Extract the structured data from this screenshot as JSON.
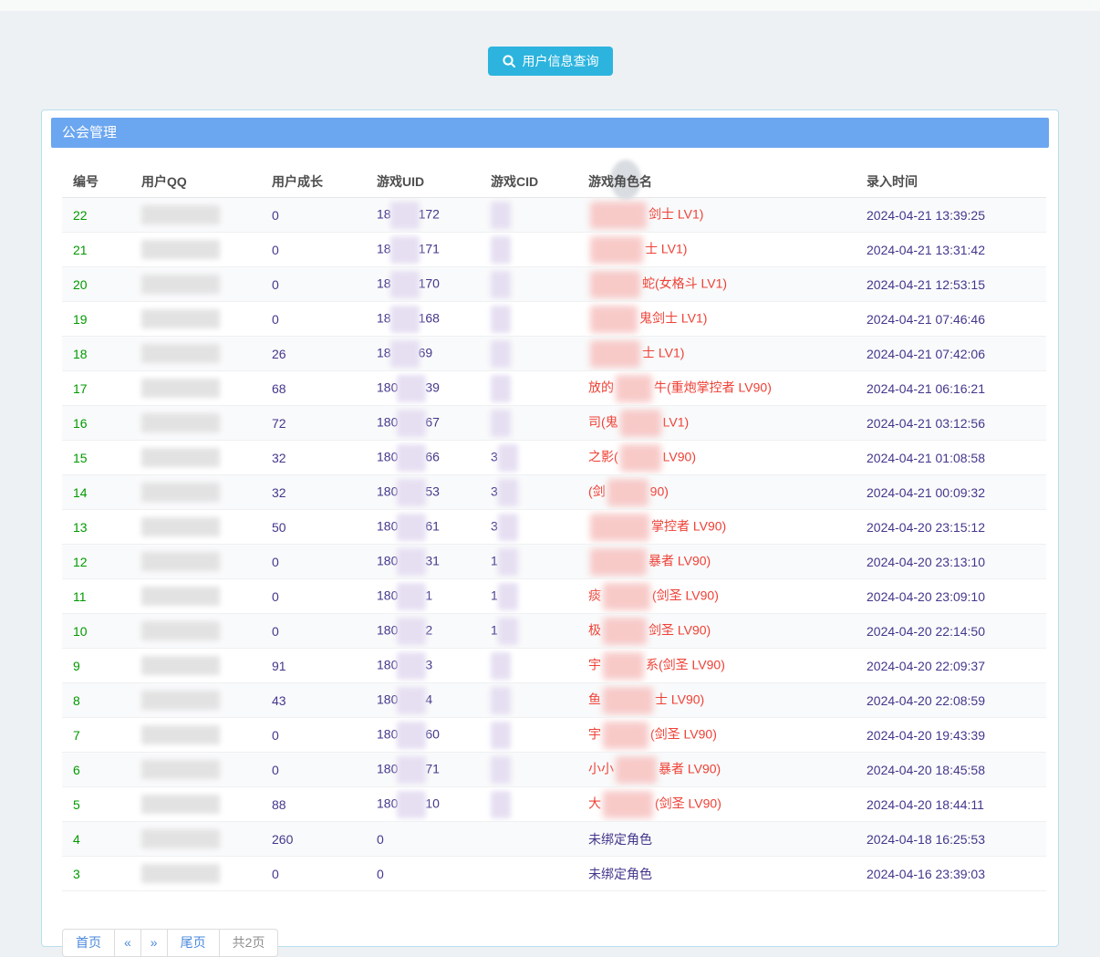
{
  "header": {
    "query_button_label": "用户信息查询",
    "query_button_color": "#2cb4df"
  },
  "panel": {
    "title": "公会管理",
    "title_bar_color": "#6ba6f0"
  },
  "colors": {
    "row_number_green": "#009900",
    "value_purple": "#43378c",
    "character_red": "#ee4035",
    "pager_link_blue": "#4a89dc",
    "panel_border": "#b9dfee"
  },
  "table": {
    "columns": [
      "编号",
      "用户QQ",
      "用户成长",
      "游戏UID",
      "游戏CID",
      "游戏角色名",
      "录入时间"
    ],
    "rows": [
      {
        "num": "22",
        "growth": "0",
        "uid": {
          "pre": "18",
          "suf": "172",
          "blur": true
        },
        "cid": {
          "pre": "",
          "blur": true
        },
        "name": {
          "pre": "",
          "suf": "剑士 LV1)",
          "red": true,
          "blur_w": 62
        },
        "time": "2024-04-21 13:39:25"
      },
      {
        "num": "21",
        "growth": "0",
        "uid": {
          "pre": "18",
          "suf": "171",
          "blur": true
        },
        "cid": {
          "pre": "",
          "blur": true
        },
        "name": {
          "pre": "",
          "suf": "士 LV1)",
          "red": true,
          "blur_w": 58
        },
        "time": "2024-04-21 13:31:42"
      },
      {
        "num": "20",
        "growth": "0",
        "uid": {
          "pre": "18",
          "suf": "170",
          "blur": true
        },
        "cid": {
          "pre": "",
          "blur": true
        },
        "name": {
          "pre": "",
          "suf": "蛇(女格斗 LV1)",
          "red": true,
          "blur_w": 55
        },
        "time": "2024-04-21 12:53:15"
      },
      {
        "num": "19",
        "growth": "0",
        "uid": {
          "pre": "18",
          "suf": "168",
          "blur": true
        },
        "cid": {
          "pre": "",
          "blur": true
        },
        "name": {
          "pre": "",
          "suf": "鬼剑士 LV1)",
          "red": true,
          "blur_w": 52
        },
        "time": "2024-04-21 07:46:46"
      },
      {
        "num": "18",
        "growth": "26",
        "uid": {
          "pre": "18",
          "suf": "69",
          "blur": true
        },
        "cid": {
          "pre": "",
          "blur": true
        },
        "name": {
          "pre": "",
          "suf": "士 LV1)",
          "red": true,
          "blur_w": 55
        },
        "time": "2024-04-21 07:42:06"
      },
      {
        "num": "17",
        "growth": "68",
        "uid": {
          "pre": "180",
          "suf": "39",
          "blur": true
        },
        "cid": {
          "pre": "",
          "blur": true
        },
        "name": {
          "pre": "放的",
          "suf": "牛(重炮掌控者 LV90)",
          "red": true,
          "blur_w": 40
        },
        "time": "2024-04-21 06:16:21"
      },
      {
        "num": "16",
        "growth": "72",
        "uid": {
          "pre": "180",
          "suf": "67",
          "blur": true
        },
        "cid": {
          "pre": "",
          "blur": true
        },
        "name": {
          "pre": "司(鬼",
          "suf": "LV1)",
          "red": true,
          "blur_w": 45
        },
        "time": "2024-04-21 03:12:56"
      },
      {
        "num": "15",
        "growth": "32",
        "uid": {
          "pre": "180",
          "suf": "66",
          "blur": true
        },
        "cid": {
          "pre": "3",
          "blur": true
        },
        "name": {
          "pre": "之影(",
          "suf": "LV90)",
          "red": true,
          "blur_w": 45
        },
        "time": "2024-04-21 01:08:58"
      },
      {
        "num": "14",
        "growth": "32",
        "uid": {
          "pre": "180",
          "suf": "53",
          "blur": true
        },
        "cid": {
          "pre": "3",
          "blur": true
        },
        "name": {
          "pre": "(剑",
          "suf": "90)",
          "red": true,
          "blur_w": 45
        },
        "time": "2024-04-21 00:09:32"
      },
      {
        "num": "13",
        "growth": "50",
        "uid": {
          "pre": "180",
          "suf": "61",
          "blur": true
        },
        "cid": {
          "pre": "3",
          "blur": true
        },
        "name": {
          "pre": "",
          "suf": "掌控者 LV90)",
          "red": true,
          "blur_w": 65
        },
        "time": "2024-04-20 23:15:12"
      },
      {
        "num": "12",
        "growth": "0",
        "uid": {
          "pre": "180",
          "suf": "31",
          "blur": true
        },
        "cid": {
          "pre": "1",
          "blur": true
        },
        "name": {
          "pre": "",
          "suf": "暴者 LV90)",
          "red": true,
          "blur_w": 62
        },
        "time": "2024-04-20 23:13:10"
      },
      {
        "num": "11",
        "growth": "0",
        "uid": {
          "pre": "180",
          "suf": "1",
          "blur": true
        },
        "cid": {
          "pre": "1",
          "blur": true
        },
        "name": {
          "pre": "痰",
          "suf": "(剑圣 LV90)",
          "red": true,
          "blur_w": 52
        },
        "time": "2024-04-20 23:09:10"
      },
      {
        "num": "10",
        "growth": "0",
        "uid": {
          "pre": "180",
          "suf": "2",
          "blur": true
        },
        "cid": {
          "pre": "1",
          "blur": true
        },
        "name": {
          "pre": "极",
          "suf": "剑圣 LV90)",
          "red": true,
          "blur_w": 48
        },
        "time": "2024-04-20 22:14:50"
      },
      {
        "num": "9",
        "growth": "91",
        "uid": {
          "pre": "180",
          "suf": "3",
          "blur": true
        },
        "cid": {
          "pre": "",
          "blur": true
        },
        "name": {
          "pre": "宇",
          "suf": "系(剑圣 LV90)",
          "red": true,
          "blur_w": 45
        },
        "time": "2024-04-20 22:09:37"
      },
      {
        "num": "8",
        "growth": "43",
        "uid": {
          "pre": "180",
          "suf": "4",
          "blur": true
        },
        "cid": {
          "pre": "",
          "blur": true
        },
        "name": {
          "pre": "鱼",
          "suf": "士 LV90)",
          "red": true,
          "blur_w": 55
        },
        "time": "2024-04-20 22:08:59"
      },
      {
        "num": "7",
        "growth": "0",
        "uid": {
          "pre": "180",
          "suf": "60",
          "blur": true
        },
        "cid": {
          "pre": "",
          "blur": true
        },
        "name": {
          "pre": "宇",
          "suf": "(剑圣 LV90)",
          "red": true,
          "blur_w": 50
        },
        "time": "2024-04-20 19:43:39"
      },
      {
        "num": "6",
        "growth": "0",
        "uid": {
          "pre": "180",
          "suf": "71",
          "blur": true
        },
        "cid": {
          "pre": "",
          "blur": true
        },
        "name": {
          "pre": "小小",
          "suf": "暴者 LV90)",
          "red": true,
          "blur_w": 45
        },
        "time": "2024-04-20 18:45:58"
      },
      {
        "num": "5",
        "growth": "88",
        "uid": {
          "pre": "180",
          "suf": "10",
          "blur": true
        },
        "cid": {
          "pre": "",
          "blur": true
        },
        "name": {
          "pre": "大",
          "suf": "(剑圣 LV90)",
          "red": true,
          "blur_w": 55
        },
        "time": "2024-04-20 18:44:11"
      },
      {
        "num": "4",
        "growth": "260",
        "uid": {
          "pre": "0",
          "suf": "",
          "blur": false
        },
        "cid": {
          "pre": "",
          "blur": false
        },
        "name": {
          "pre": "未绑定角色",
          "suf": "",
          "red": false,
          "blur_w": 0
        },
        "time": "2024-04-18 16:25:53"
      },
      {
        "num": "3",
        "growth": "0",
        "uid": {
          "pre": "0",
          "suf": "",
          "blur": false
        },
        "cid": {
          "pre": "",
          "blur": false
        },
        "name": {
          "pre": "未绑定角色",
          "suf": "",
          "red": false,
          "blur_w": 0
        },
        "time": "2024-04-16 23:39:03"
      }
    ]
  },
  "pagination": {
    "items": [
      {
        "label": "首页",
        "type": "link"
      },
      {
        "label": "«",
        "type": "link"
      },
      {
        "label": "»",
        "type": "link"
      },
      {
        "label": "尾页",
        "type": "link"
      },
      {
        "label": "共2页",
        "type": "text"
      }
    ]
  }
}
